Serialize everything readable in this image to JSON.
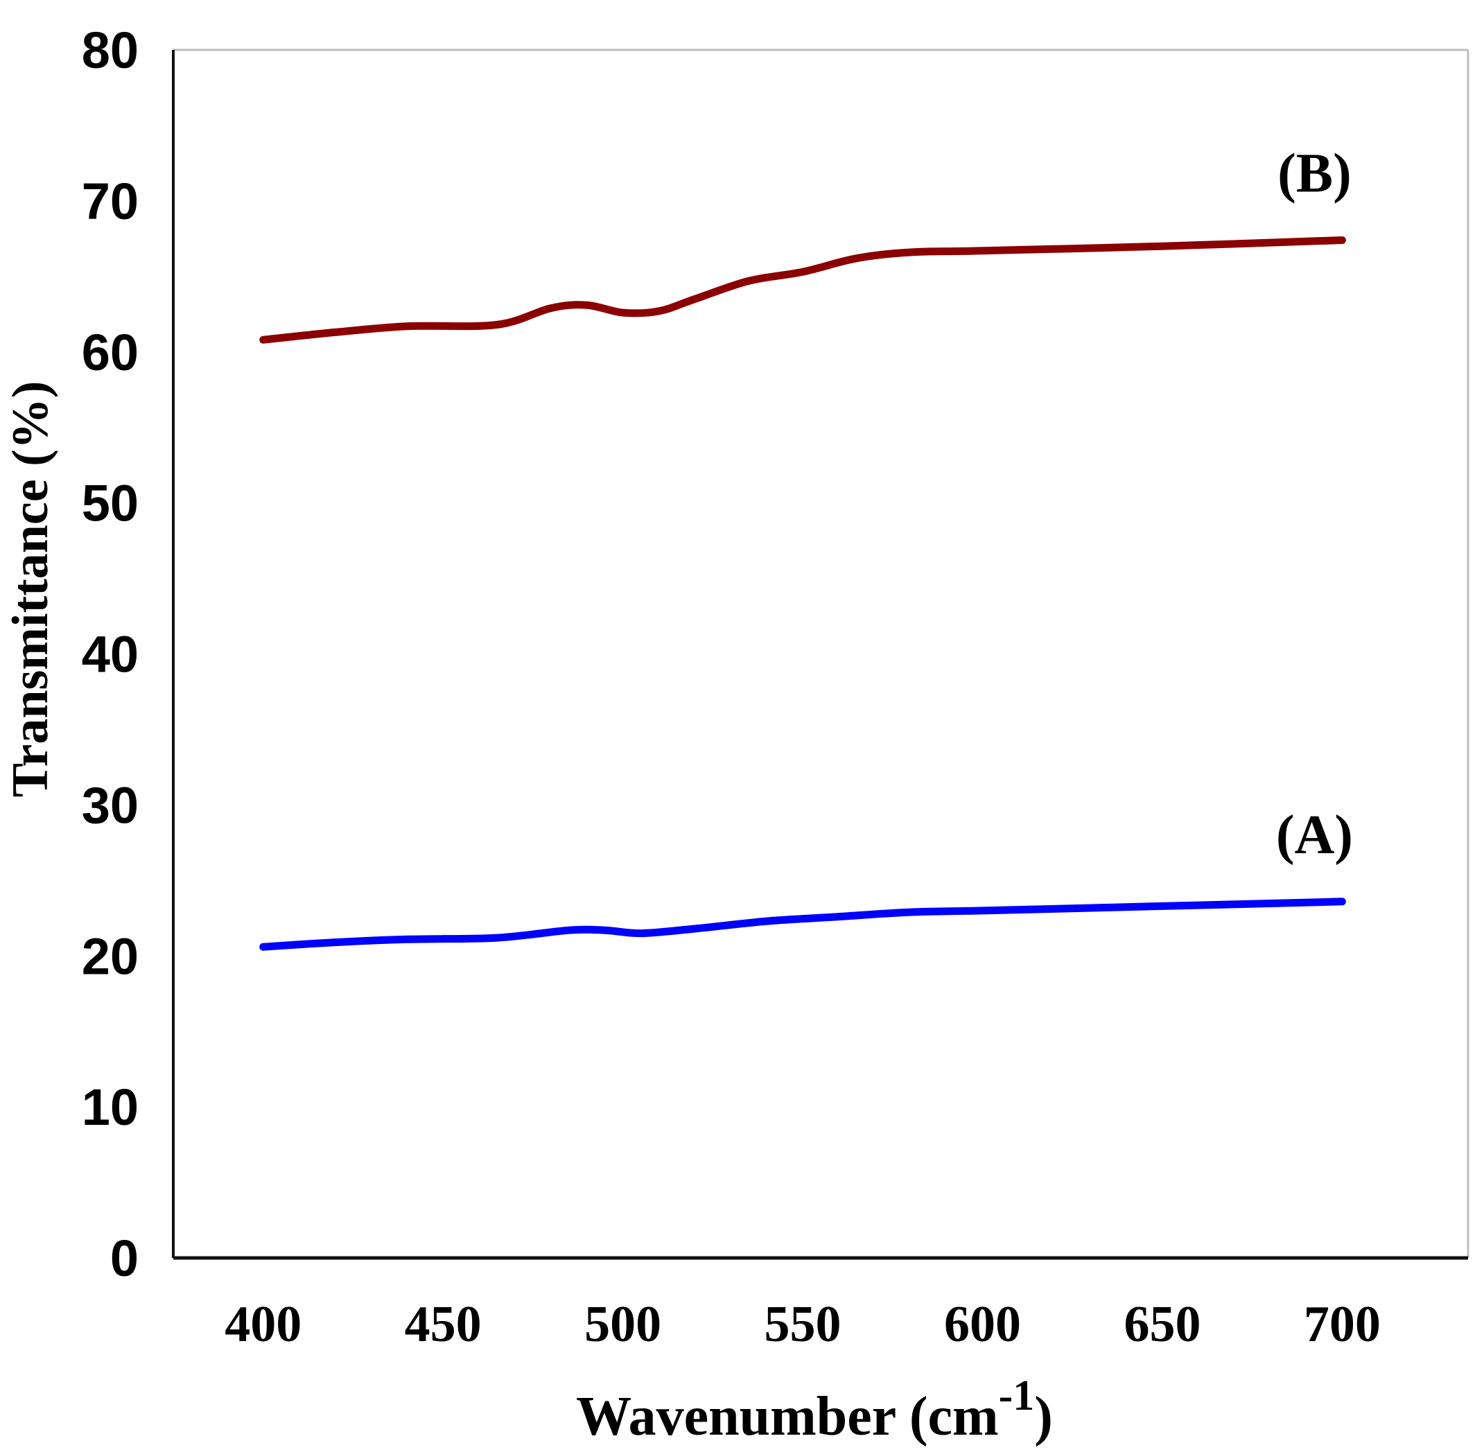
{
  "chart_data": {
    "type": "line",
    "xlabel": "Wavenumber (cm",
    "xlabel_superscript": "-1",
    "xlabel_suffix": ")",
    "ylabel": "Transmittance (%)",
    "xlim": [
      375,
      735
    ],
    "ylim": [
      0,
      80
    ],
    "xticks": [
      400,
      450,
      500,
      550,
      600,
      650,
      700
    ],
    "yticks": [
      0,
      10,
      20,
      30,
      40,
      50,
      60,
      70,
      80
    ],
    "grid": false,
    "series": [
      {
        "name": "(A)",
        "color": "#0000ff",
        "x": [
          400,
          420,
          440,
          465,
          485,
          495,
          505,
          520,
          540,
          560,
          580,
          600,
          650,
          700
        ],
        "y": [
          20.6,
          20.9,
          21.1,
          21.2,
          21.7,
          21.7,
          21.5,
          21.8,
          22.3,
          22.6,
          22.9,
          23.0,
          23.3,
          23.6
        ]
      },
      {
        "name": "(B)",
        "color": "#8b0000",
        "x": [
          400,
          420,
          440,
          465,
          480,
          490,
          500,
          510,
          520,
          535,
          550,
          565,
          580,
          600,
          650,
          700
        ],
        "y": [
          60.8,
          61.3,
          61.7,
          61.8,
          62.9,
          63.1,
          62.6,
          62.7,
          63.5,
          64.7,
          65.3,
          66.2,
          66.6,
          66.7,
          67.0,
          67.4
        ]
      }
    ]
  }
}
